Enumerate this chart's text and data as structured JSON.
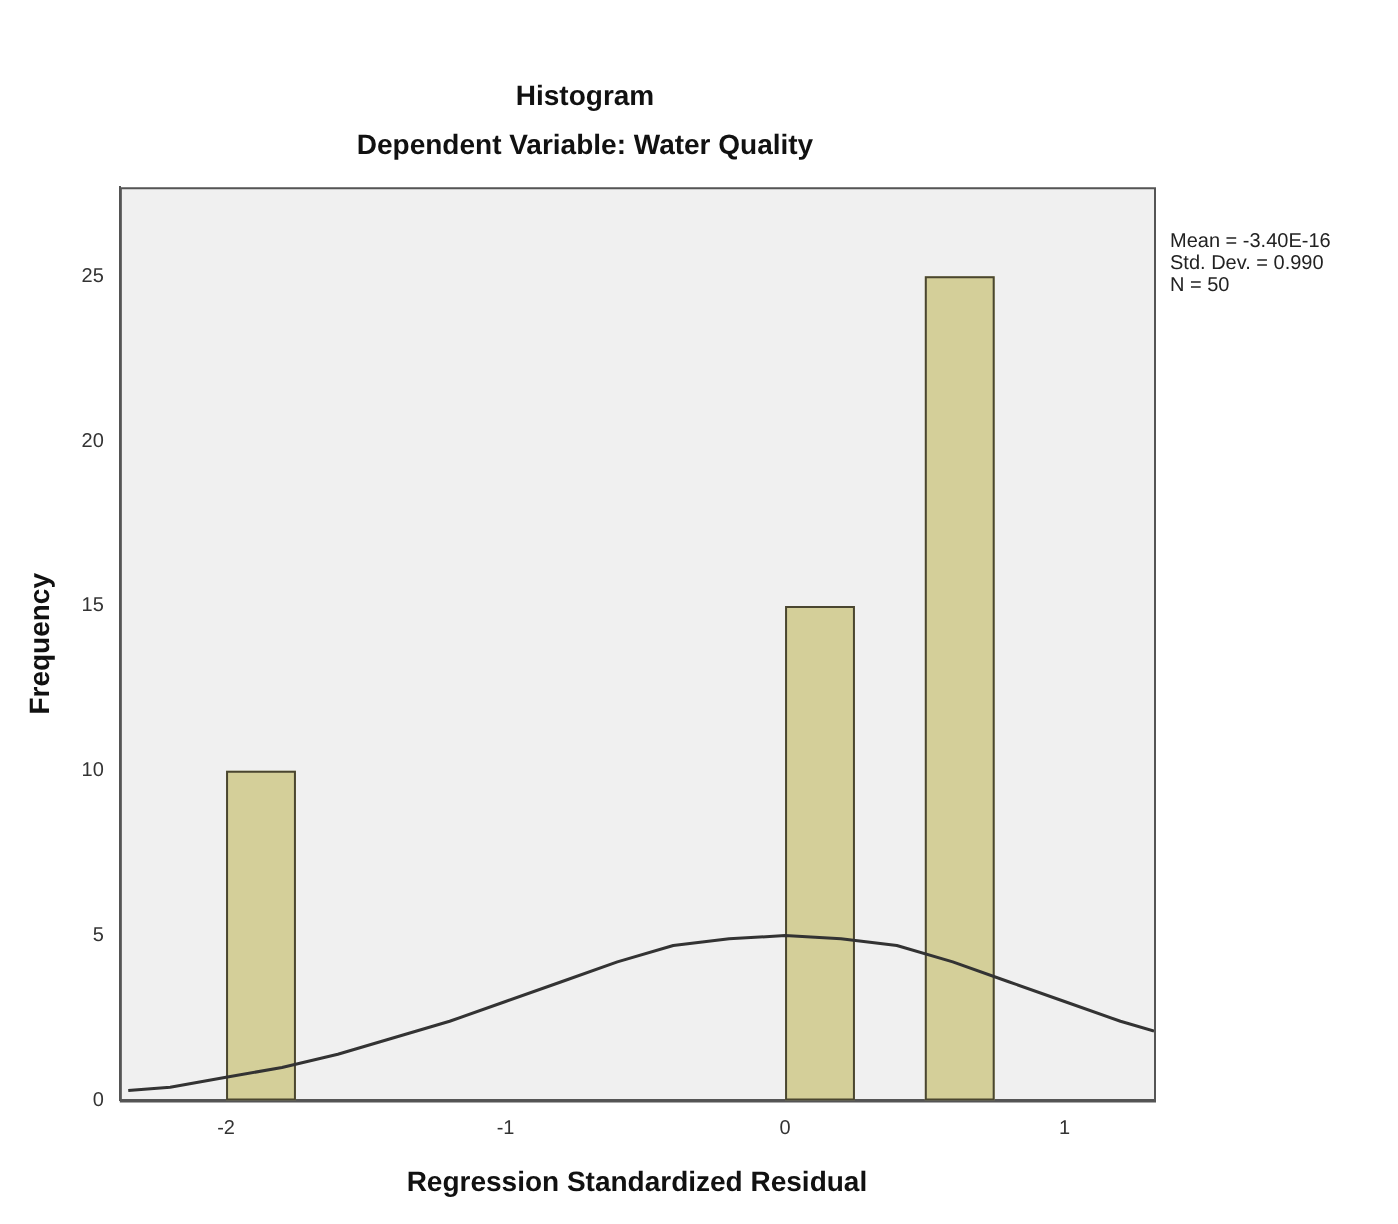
{
  "chart_data": {
    "type": "histogram",
    "title": "Histogram",
    "subtitle": "Dependent Variable: Water Quality",
    "xlabel": "Regression Standardized Residual",
    "ylabel": "Frequency",
    "series": [
      {
        "type": "histogram",
        "color": "#d4cf99",
        "bins": [
          -2,
          -1.75,
          0,
          0.25,
          0.5,
          0.75
        ],
        "values": [
          10,
          0,
          15,
          0,
          25
        ]
      },
      {
        "type": "line",
        "color": "#333333",
        "x": [
          -2.35,
          -2.2,
          -2.0,
          -1.8,
          -1.6,
          -1.4,
          -1.2,
          -1.0,
          -0.8,
          -0.6,
          -0.4,
          -0.2,
          0,
          0.2,
          0.4,
          0.6,
          0.8,
          1.0,
          1.2,
          1.32
        ],
        "values": [
          0.3,
          0.4,
          0.7,
          1.0,
          1.4,
          1.9,
          2.4,
          3.0,
          3.6,
          4.2,
          4.7,
          4.9,
          5.0,
          4.9,
          4.7,
          4.2,
          3.6,
          3.0,
          2.4,
          2.1
        ]
      }
    ],
    "xlim": [
      -2.38,
      1.32
    ],
    "xticks": [
      -2,
      -1,
      0,
      1
    ],
    "ylim": [
      0,
      27.7
    ],
    "yticks": [
      0,
      5,
      10,
      15,
      20,
      25
    ],
    "grid": false,
    "legend": false,
    "marker": "none",
    "annotations": [
      "Mean = -3.40E-16",
      "Std. Dev. = 0.990",
      "N = 50"
    ]
  }
}
